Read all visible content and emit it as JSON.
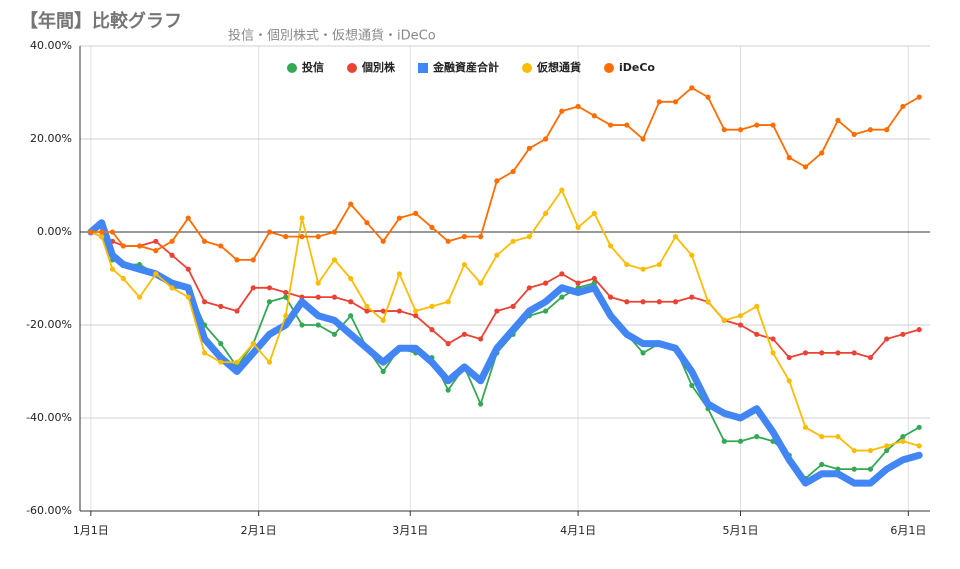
{
  "chart_data": {
    "type": "line",
    "title": "【年間】比較グラフ",
    "subtitle": "投信・個別株式・仮想通貨・iDeCo",
    "x": [
      0,
      2,
      4,
      6,
      9,
      12,
      15,
      18,
      21,
      24,
      27,
      30,
      33,
      36,
      39,
      42,
      45,
      48,
      51,
      54,
      57,
      60,
      63,
      66,
      69,
      72,
      75,
      78,
      81,
      84,
      87,
      90,
      93,
      96,
      99,
      102,
      105,
      108,
      111,
      114,
      117,
      120,
      123,
      126,
      129,
      132,
      135,
      138,
      141,
      144,
      147,
      150,
      153
    ],
    "xlim": [
      -2,
      155
    ],
    "xticks": [
      {
        "value": 0,
        "label": "1月1日"
      },
      {
        "value": 31,
        "label": "2月1日"
      },
      {
        "value": 59,
        "label": "3月1日"
      },
      {
        "value": 90,
        "label": "4月1日"
      },
      {
        "value": 120,
        "label": "5月1日"
      },
      {
        "value": 151,
        "label": "6月1日"
      }
    ],
    "ylim": [
      -60,
      40
    ],
    "yticks": [
      {
        "value": -60,
        "label": "-60.00%"
      },
      {
        "value": -40,
        "label": "-40.00%"
      },
      {
        "value": -20,
        "label": "-20.00%"
      },
      {
        "value": 0,
        "label": "0.00%"
      },
      {
        "value": 20,
        "label": "20.00%"
      },
      {
        "value": 40,
        "label": "40.00%"
      }
    ],
    "grid": true,
    "legend": "top",
    "series": [
      {
        "name": "投信",
        "color": "#34a853",
        "marker": "circle",
        "values": [
          0,
          -1,
          -6,
          -7,
          -7,
          -9,
          -12,
          -12,
          -20,
          -24,
          -29,
          -24,
          -15,
          -14,
          -20,
          -20,
          -22,
          -18,
          -25,
          -30,
          -25,
          -26,
          -27,
          -34,
          -29,
          -37,
          -26,
          -22,
          -18,
          -17,
          -14,
          -12,
          -11,
          -18,
          -22,
          -26,
          -24,
          -25,
          -33,
          -38,
          -45,
          -45,
          -44,
          -45,
          -48,
          -53,
          -50,
          -51,
          -51,
          -51,
          -47,
          -44,
          -42
        ]
      },
      {
        "name": "個別株",
        "color": "#ea4335",
        "marker": "circle",
        "values": [
          0,
          -1,
          -2,
          -3,
          -3,
          -2,
          -5,
          -8,
          -15,
          -16,
          -17,
          -12,
          -12,
          -13,
          -14,
          -14,
          -14,
          -15,
          -17,
          -17,
          -17,
          -18,
          -21,
          -24,
          -22,
          -23,
          -17,
          -16,
          -12,
          -11,
          -9,
          -11,
          -10,
          -14,
          -15,
          -15,
          -15,
          -15,
          -14,
          -15,
          -19,
          -20,
          -22,
          -23,
          -27,
          -26,
          -26,
          -26,
          -26,
          -27,
          -23,
          -22,
          -21
        ]
      },
      {
        "name": "金融資産合計",
        "color": "#4285f4",
        "marker": "square",
        "values": [
          0,
          2,
          -5,
          -7,
          -8,
          -9,
          -11,
          -12,
          -23,
          -27,
          -30,
          -26,
          -22,
          -20,
          -15,
          -18,
          -19,
          -22,
          -25,
          -28,
          -25,
          -25,
          -28,
          -32,
          -29,
          -32,
          -25,
          -21,
          -17,
          -15,
          -12,
          -13,
          -12,
          -18,
          -22,
          -24,
          -24,
          -25,
          -30,
          -37,
          -39,
          -40,
          -38,
          -43,
          -49,
          -54,
          -52,
          -52,
          -54,
          -54,
          -51,
          -49,
          -48
        ]
      },
      {
        "name": "仮想通貨",
        "color": "#fbbc04",
        "marker": "circle",
        "values": [
          0,
          -1,
          -8,
          -10,
          -14,
          -9,
          -12,
          -14,
          -26,
          -28,
          -28,
          -24,
          -28,
          -18,
          3,
          -11,
          -6,
          -10,
          -16,
          -19,
          -9,
          -17,
          -16,
          -15,
          -7,
          -11,
          -5,
          -2,
          -1,
          4,
          9,
          1,
          4,
          -3,
          -7,
          -8,
          -7,
          -1,
          -5,
          -15,
          -19,
          -18,
          -16,
          -26,
          -32,
          -42,
          -44,
          -44,
          -47,
          -47,
          -46,
          -45,
          -46
        ]
      },
      {
        "name": "iDeCo",
        "color": "#ff6d01",
        "marker": "circle",
        "values": [
          0,
          0,
          0,
          -3,
          -3,
          -4,
          -2,
          3,
          -2,
          -3,
          -6,
          -6,
          0,
          -1,
          -1,
          -1,
          0,
          6,
          2,
          -2,
          3,
          4,
          1,
          -2,
          -1,
          -1,
          11,
          13,
          18,
          20,
          26,
          27,
          25,
          23,
          23,
          20,
          28,
          28,
          31,
          29,
          22,
          22,
          23,
          23,
          16,
          14,
          17,
          24,
          21,
          22,
          22,
          27,
          29
        ]
      }
    ]
  }
}
